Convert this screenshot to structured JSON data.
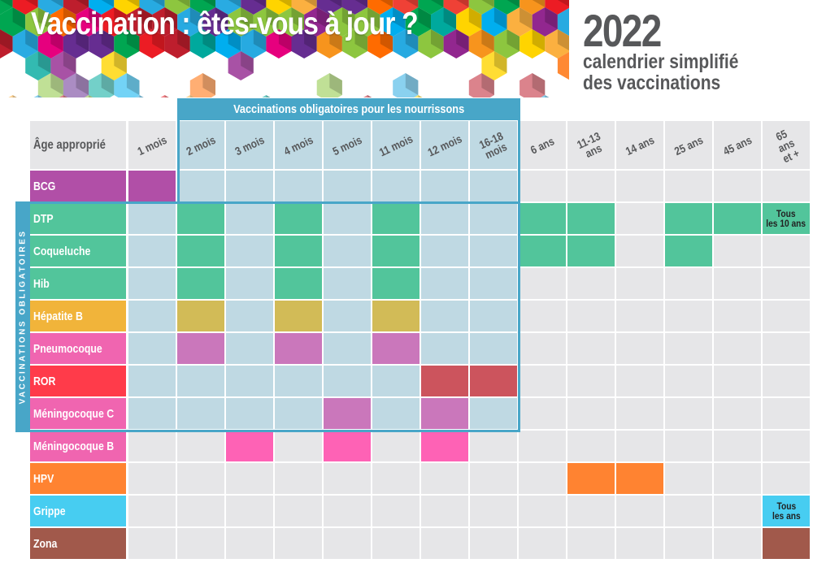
{
  "header": {
    "title": "Vaccination : êtes-vous à jour ?",
    "year": "2022",
    "subtitle_line1": "calendrier simplifié",
    "subtitle_line2": "des vaccinations"
  },
  "table": {
    "age_header": "Âge approprié",
    "infant_banner": "Vaccinations obligatoires pour les nourrissons",
    "mandatory_side_label": "VACCINATIONS OBLIGATOIRES",
    "ages": [
      "1 mois",
      "2 mois",
      "3 mois",
      "4 mois",
      "5 mois",
      "11 mois",
      "12 mois",
      "16-18 mois",
      "6 ans",
      "11-13 ans",
      "14 ans",
      "25 ans",
      "45 ans",
      "65 ans et +"
    ],
    "rows": [
      {
        "name": "BCG",
        "color": "#b14fa7",
        "fill": "#b14fa7",
        "cells": [
          0
        ]
      },
      {
        "name": "DTP",
        "color": "#52c59b",
        "fill": "#52c59b",
        "cells": [
          1,
          3,
          5,
          8,
          9,
          11,
          12,
          13
        ],
        "note": {
          "col": 13,
          "line1": "Tous",
          "line2": "les 10 ans"
        }
      },
      {
        "name": "Coqueluche",
        "color": "#52c59b",
        "fill": "#52c59b",
        "cells": [
          1,
          3,
          5,
          8,
          9,
          11
        ]
      },
      {
        "name": "Hib",
        "color": "#52c59b",
        "fill": "#52c59b",
        "cells": [
          1,
          3,
          5
        ]
      },
      {
        "name": "Hépatite B",
        "color": "#f1b43a",
        "fill": "#d2bb57",
        "cells": [
          1,
          3,
          5
        ]
      },
      {
        "name": "Pneumocoque",
        "color": "#f065b0",
        "fill": "#ca77bb",
        "cells": [
          1,
          3,
          5
        ]
      },
      {
        "name": "ROR",
        "color": "#ff3b4a",
        "fill": "#cc545d",
        "cells": [
          6,
          7
        ]
      },
      {
        "name": "Méningocoque C",
        "color": "#f065b0",
        "fill": "#ca77bb",
        "cells": [
          4,
          6
        ]
      },
      {
        "name": "Méningocoque B",
        "color": "#f065b0",
        "fill": "#fe62b5",
        "cells": [
          2,
          4,
          6
        ]
      },
      {
        "name": "HPV",
        "color": "#ff8331",
        "fill": "#ff8331",
        "cells": [
          9,
          10
        ]
      },
      {
        "name": "Grippe",
        "color": "#47cdf1",
        "fill": "#47cdf1",
        "cells": [
          13
        ],
        "note": {
          "col": 13,
          "line1": "Tous",
          "line2": "les ans"
        }
      },
      {
        "name": "Zona",
        "color": "#a1594b",
        "fill": "#a1594b",
        "cells": [
          13
        ]
      }
    ]
  },
  "colors": {
    "grey_cell": "#e6e6e8",
    "infant_zone": "#bfd9e3",
    "accent_blue": "#48a6c8",
    "title_grey": "#57585a"
  }
}
